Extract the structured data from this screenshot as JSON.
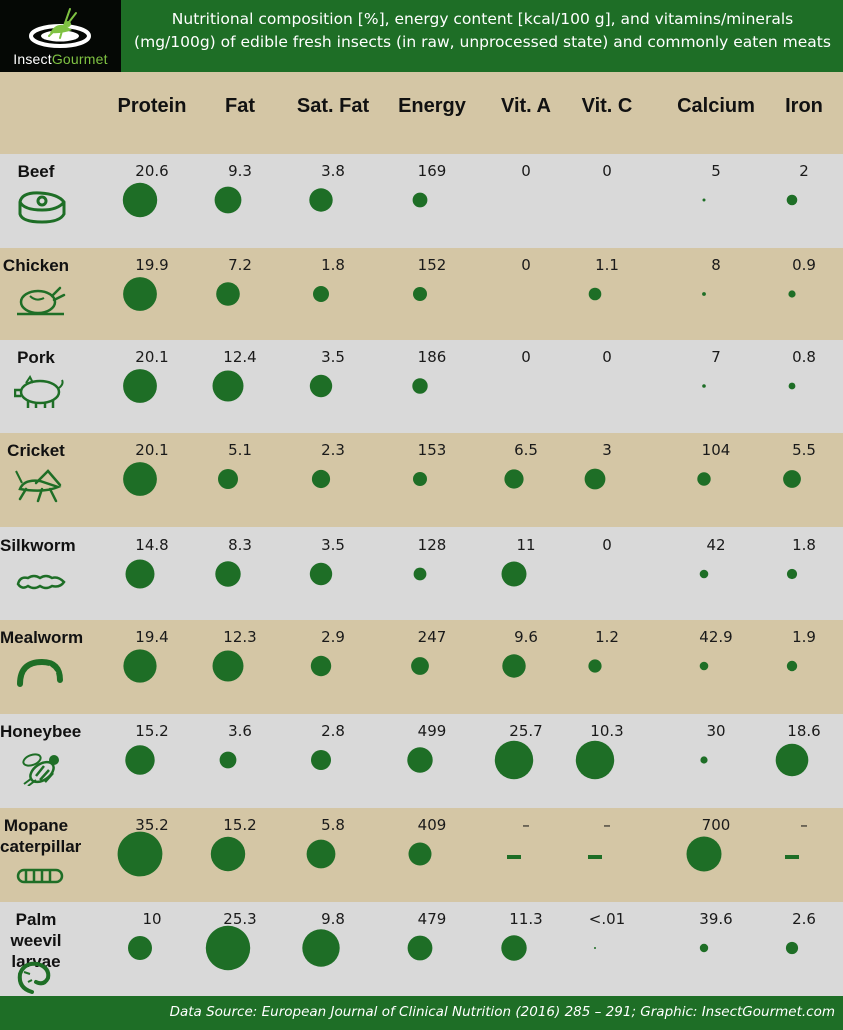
{
  "header": {
    "logo": {
      "brand_white": "Insect",
      "brand_green": "Gourmet",
      "icon": "cricket-on-plate-icon"
    },
    "title": "Nutritional composition [%], energy content [kcal/100 g], and vitamins/minerals (mg/100g) of edible fresh insects (in raw, unprocessed state) and commonly eaten meats"
  },
  "footer": {
    "source": "Data Source: European Journal of Clinical Nutrition (2016) 285 – 291; Graphic: InsectGourmet.com"
  },
  "colors": {
    "bubble": "#1e6e26",
    "header_bg": "#1e6e26",
    "tan_row": "#d4c6a5",
    "grey_row": "#d9d9d9"
  },
  "chart_data": {
    "type": "table",
    "columns": [
      "Protein",
      "Fat",
      "Sat. Fat",
      "Energy",
      "Vit. A",
      "Vit. C",
      "Calcium",
      "Iron"
    ],
    "rows": [
      {
        "name": "Beef",
        "icon": "steak-icon",
        "values": [
          "20.6",
          "9.3",
          "3.8",
          "169",
          "0",
          "0",
          "5",
          "2"
        ]
      },
      {
        "name": "Chicken",
        "icon": "roast-chicken-icon",
        "values": [
          "19.9",
          "7.2",
          "1.8",
          "152",
          "0",
          "1.1",
          "8",
          "0.9"
        ]
      },
      {
        "name": "Pork",
        "icon": "pig-icon",
        "values": [
          "20.1",
          "12.4",
          "3.5",
          "186",
          "0",
          "0",
          "7",
          "0.8"
        ]
      },
      {
        "name": "Cricket",
        "icon": "cricket-icon",
        "values": [
          "20.1",
          "5.1",
          "2.3",
          "153",
          "6.5",
          "3",
          "104",
          "5.5"
        ]
      },
      {
        "name": "Silkworm",
        "icon": "silkworm-icon",
        "values": [
          "14.8",
          "8.3",
          "3.5",
          "128",
          "11",
          "0",
          "42",
          "1.8"
        ]
      },
      {
        "name": "Mealworm",
        "icon": "mealworm-icon",
        "values": [
          "19.4",
          "12.3",
          "2.9",
          "247",
          "9.6",
          "1.2",
          "42.9",
          "1.9"
        ]
      },
      {
        "name": "Honeybee",
        "icon": "honeybee-icon",
        "values": [
          "15.2",
          "3.6",
          "2.8",
          "499",
          "25.7",
          "10.3",
          "30",
          "18.6"
        ]
      },
      {
        "name": "Mopane caterpillar",
        "icon": "caterpillar-icon",
        "values": [
          "35.2",
          "15.2",
          "5.8",
          "409",
          "–",
          "–",
          "700",
          "–"
        ]
      },
      {
        "name": "Palm weevil larvae",
        "icon": "larva-icon",
        "values": [
          "10",
          "25.3",
          "9.8",
          "479",
          "11.3",
          "<.01",
          "39.6",
          "2.6"
        ]
      }
    ]
  }
}
